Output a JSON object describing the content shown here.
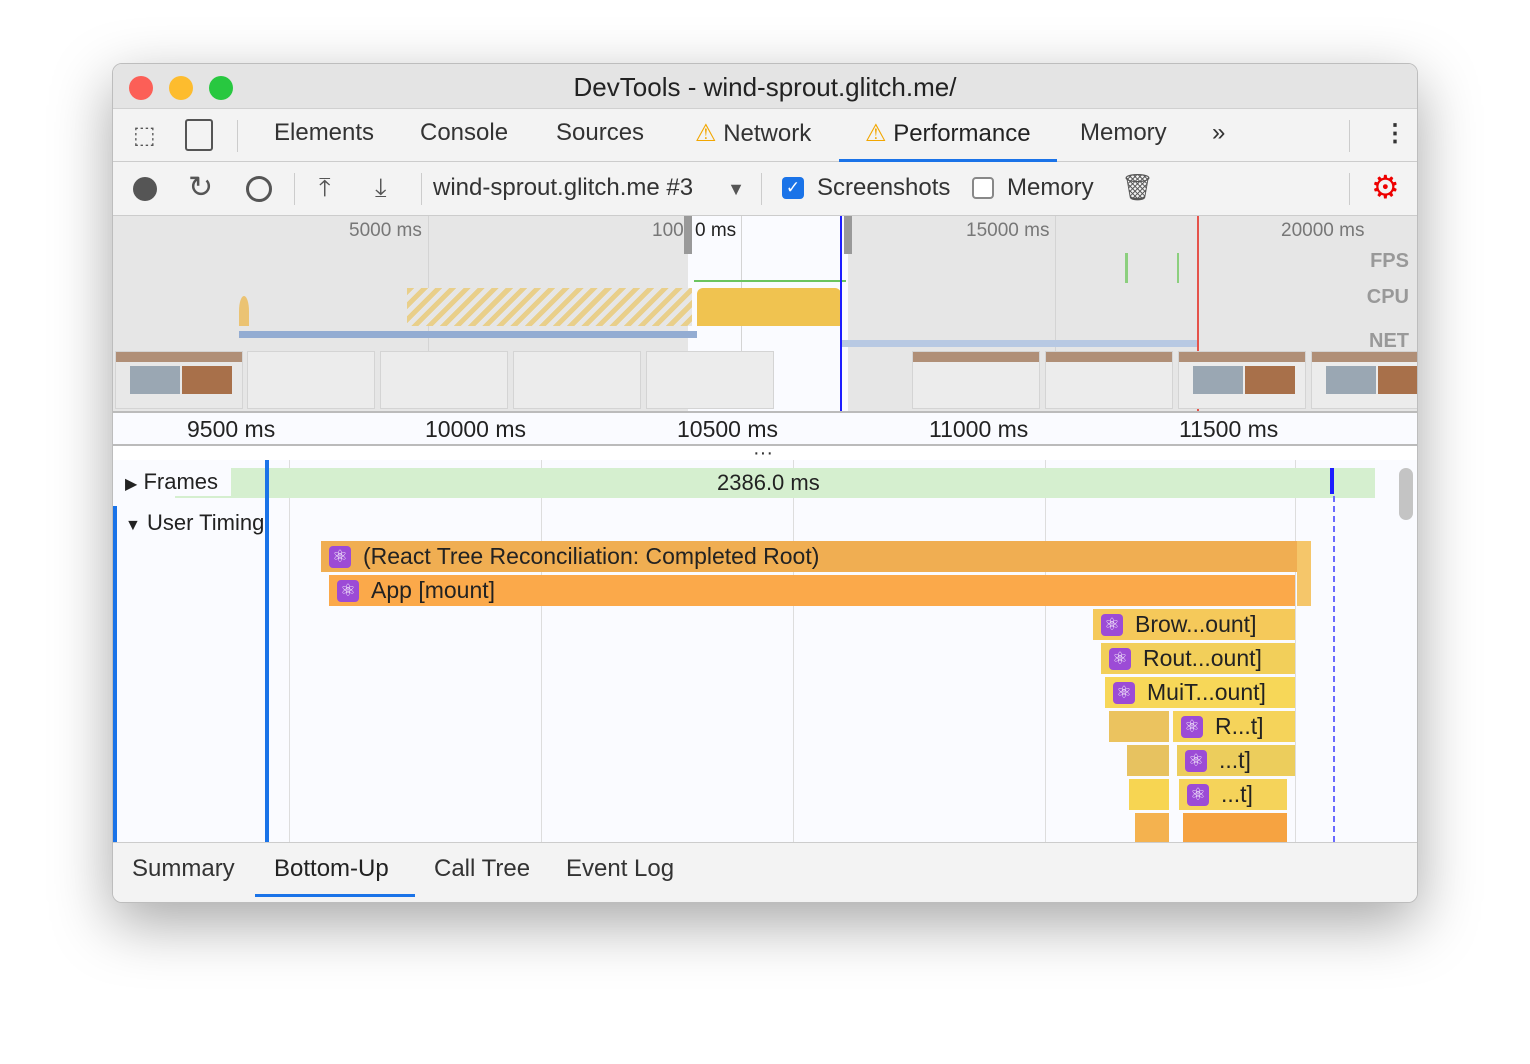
{
  "window": {
    "title": "DevTools - wind-sprout.glitch.me/"
  },
  "tabs": [
    {
      "label": "Elements"
    },
    {
      "label": "Console"
    },
    {
      "label": "Sources"
    },
    {
      "label": "Network",
      "warning": true
    },
    {
      "label": "Performance",
      "warning": true,
      "active": true
    },
    {
      "label": "Memory"
    }
  ],
  "toolbar": {
    "profile_select": "wind-sprout.glitch.me #3",
    "screenshots_label": "Screenshots",
    "screenshots_checked": true,
    "memory_label": "Memory",
    "memory_checked": false
  },
  "overview": {
    "ticks": [
      "5000 ms",
      "100",
      "0 ms",
      "15000 ms",
      "20000 ms"
    ],
    "lanes": [
      "FPS",
      "CPU",
      "NET"
    ]
  },
  "ruler": {
    "ticks": [
      "9500 ms",
      "10000 ms",
      "10500 ms",
      "11000 ms",
      "11500 ms"
    ]
  },
  "flame": {
    "frames_label": "Frames",
    "frames_duration": "2386.0 ms",
    "user_timing_label": "User Timing",
    "bars": [
      "(React Tree Reconciliation: Completed Root)",
      "App [mount]",
      "Brow...ount]",
      "Rout...ount]",
      "MuiT...ount]",
      "R...t]",
      "...t]",
      "...t]"
    ]
  },
  "bottom_tabs": [
    {
      "label": "Summary"
    },
    {
      "label": "Bottom-Up",
      "active": true
    },
    {
      "label": "Call Tree"
    },
    {
      "label": "Event Log"
    }
  ],
  "colors": {
    "accent": "#1a73e8",
    "react_icon": "#9c4bd6",
    "bar_orange": "#f0ae52",
    "bar_yellow": "#f5d35a",
    "frames": "#d5efcf"
  }
}
